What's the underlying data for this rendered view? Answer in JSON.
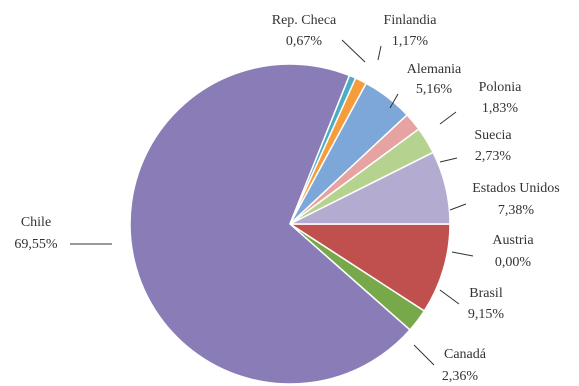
{
  "chart_data": {
    "type": "pie",
    "title": "",
    "slices": [
      {
        "label": "Austria",
        "value": 0.0,
        "value_label": "0,00%",
        "color": "#c2bfd9"
      },
      {
        "label": "Brasil",
        "value": 9.15,
        "value_label": "9,15%",
        "color": "#c0504d"
      },
      {
        "label": "Canadá",
        "value": 2.36,
        "value_label": "2,36%",
        "color": "#77a94a"
      },
      {
        "label": "Chile",
        "value": 69.55,
        "value_label": "69,55%",
        "color": "#8a7cb6"
      },
      {
        "label": "Rep. Checa",
        "value": 0.67,
        "value_label": "0,67%",
        "color": "#4bacc6"
      },
      {
        "label": "Finlandia",
        "value": 1.17,
        "value_label": "1,17%",
        "color": "#f59d3d"
      },
      {
        "label": "Alemania",
        "value": 5.16,
        "value_label": "5,16%",
        "color": "#7da7d9"
      },
      {
        "label": "Polonia",
        "value": 1.83,
        "value_label": "1,83%",
        "color": "#e6a3a1"
      },
      {
        "label": "Suecia",
        "value": 2.73,
        "value_label": "2,73%",
        "color": "#b6d28f"
      },
      {
        "label": "Estados Unidos",
        "value": 7.38,
        "value_label": "7,38%",
        "color": "#b3acd0"
      }
    ]
  }
}
